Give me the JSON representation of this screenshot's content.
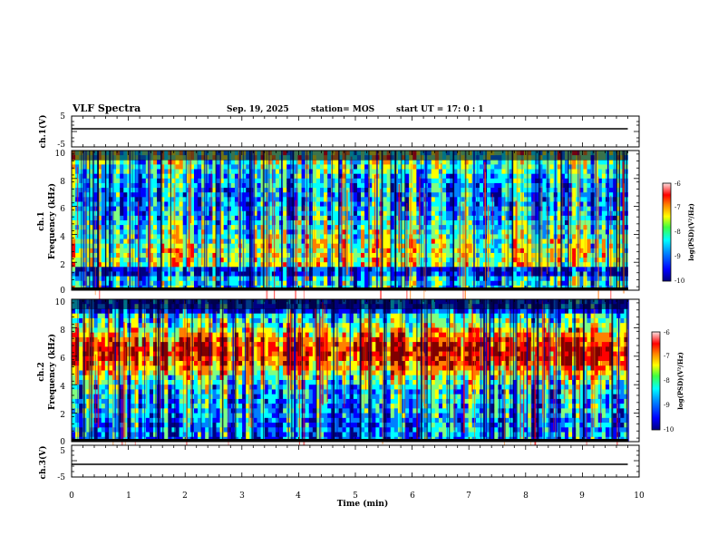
{
  "header": {
    "title": "VLF Spectra",
    "date": "Sep. 19, 2025",
    "station": "station= MOS",
    "start_ut": "start  UT  =   17: 0  : 1"
  },
  "chart_data": [
    {
      "type": "line",
      "ylabel": "ch.1(V)",
      "xlim": [
        0,
        10
      ],
      "ylim": [
        -5,
        5
      ],
      "yticks": [
        "5",
        "-5"
      ],
      "series": [
        {
          "x": [
            0,
            9.8
          ],
          "values": [
            -1,
            -1
          ]
        }
      ]
    },
    {
      "type": "heatmap",
      "ylabel": "ch.1",
      "ylabel2": "Frequency  (kHz)",
      "xlim": [
        0,
        10
      ],
      "ylim": [
        0,
        10
      ],
      "yticks": [
        "0",
        "2",
        "4",
        "6",
        "8",
        "10"
      ],
      "data_end_min": 9.8,
      "colorbar": {
        "label": "log(PSD)(V²/Hz)",
        "range": [
          -10,
          -6
        ],
        "ticks": [
          "-6",
          "-7",
          "-8",
          "-9",
          "-10"
        ]
      }
    },
    {
      "type": "heatmap",
      "ylabel": "ch.2",
      "ylabel2": "Frequency  (kHz)",
      "xlim": [
        0,
        10
      ],
      "ylim": [
        0,
        10
      ],
      "yticks": [
        "0",
        "2",
        "4",
        "6",
        "8",
        "10"
      ],
      "data_end_min": 9.8,
      "colorbar": {
        "label": "log(PSD)(V²/Hz)",
        "range": [
          -10,
          -6
        ],
        "ticks": [
          "-6",
          "-7",
          "-8",
          "-9",
          "-10"
        ]
      }
    },
    {
      "type": "line",
      "ylabel": "ch.3(V)",
      "xlim": [
        0,
        10
      ],
      "ylim": [
        -5,
        5
      ],
      "yticks": [
        "5",
        "-5"
      ],
      "series": [
        {
          "x": [
            0,
            9.8
          ],
          "values": [
            -1,
            -1
          ]
        }
      ]
    }
  ],
  "x_axis": {
    "label": "Time  (min)",
    "ticks": [
      "0",
      "1",
      "2",
      "3",
      "4",
      "5",
      "6",
      "7",
      "8",
      "9",
      "10"
    ]
  },
  "colors": {
    "jet": [
      "#000080",
      "#0000ff",
      "#0080ff",
      "#00ffff",
      "#80ff80",
      "#ffff00",
      "#ff8000",
      "#ff0000",
      "#800000"
    ]
  }
}
